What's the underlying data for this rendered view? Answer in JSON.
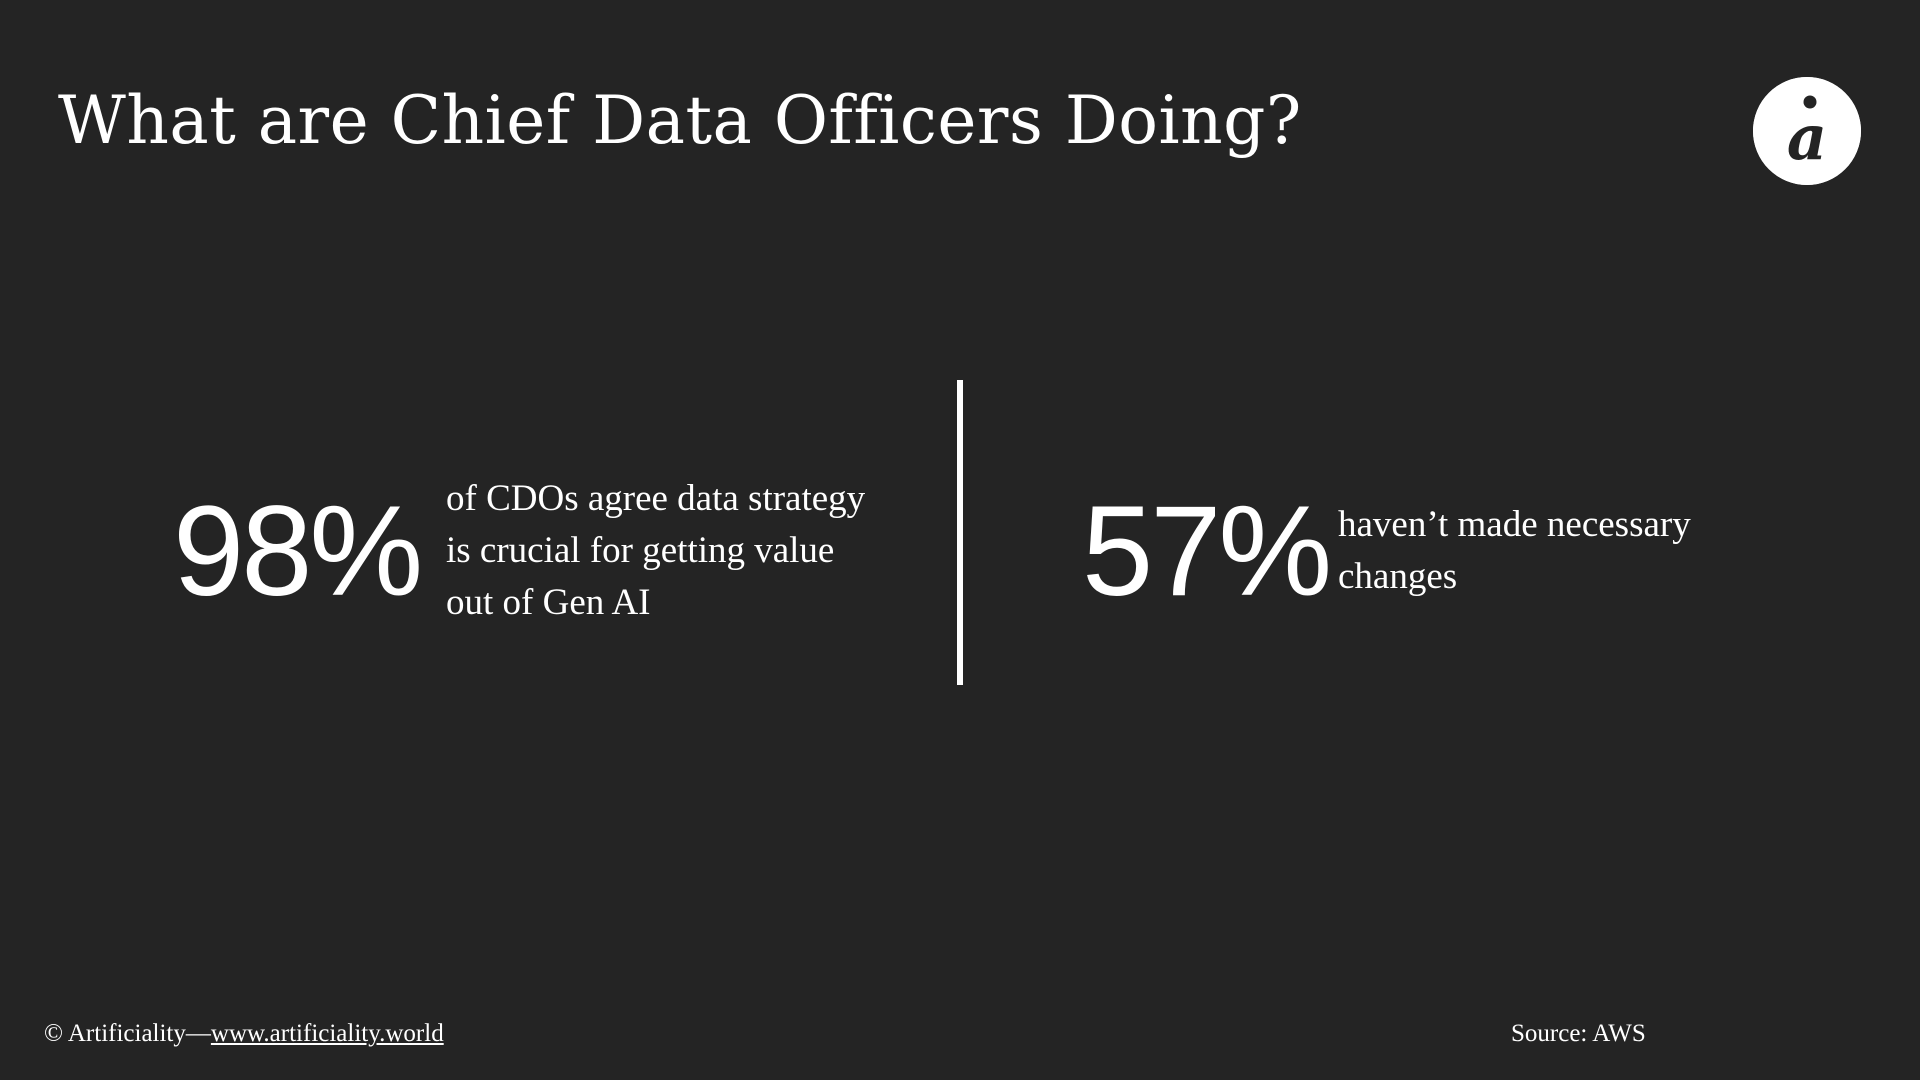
{
  "slide": {
    "title": "What are Chief Data Officers Doing?"
  },
  "logo": {
    "icon": "artificiality-logo-icon",
    "glyph": "a"
  },
  "stats": [
    {
      "value": "98%",
      "lines": [
        "of CDOs agree data strategy",
        "is crucial for getting value",
        "out of Gen AI"
      ]
    },
    {
      "value": "57%",
      "lines": [
        "haven’t made necessary",
        "changes"
      ]
    }
  ],
  "footer": {
    "copyright_prefix": "© Artificiality—",
    "link_text": "www.artificiality.world",
    "source": "Source: AWS"
  }
}
